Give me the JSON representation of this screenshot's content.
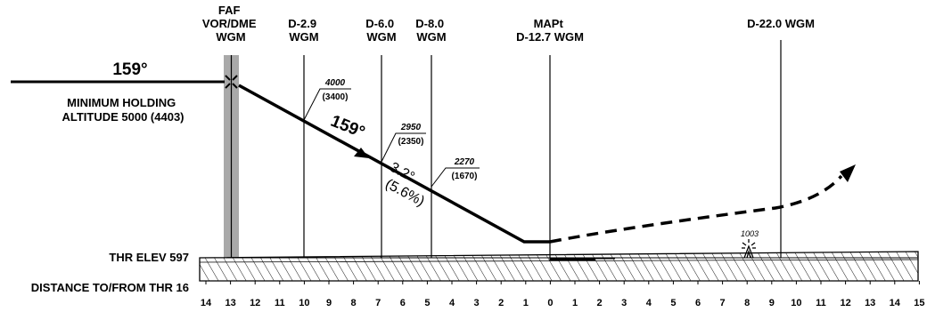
{
  "fixes": {
    "faf": {
      "line1": "FAF",
      "line2": "VOR/DME",
      "line3": "WGM"
    },
    "d29": {
      "line1": "D-2.9",
      "line2": "WGM"
    },
    "d60": {
      "line1": "D-6.0",
      "line2": "WGM"
    },
    "d80": {
      "line1": "D-8.0",
      "line2": "WGM"
    },
    "mapt": {
      "line1": "MAPt",
      "line2": "D-12.7 WGM"
    },
    "d220": {
      "line1": "D-22.0 WGM"
    }
  },
  "inbound_course": "159°",
  "final_course": "159°",
  "holding": {
    "line1": "MINIMUM HOLDING",
    "line2": "ALTITUDE 5000 (4403)"
  },
  "altitudes": {
    "d29": {
      "msl": "4000",
      "agl": "(3400)"
    },
    "d60": {
      "msl": "2950",
      "agl": "(2350)"
    },
    "d80": {
      "msl": "2270",
      "agl": "(1670)"
    }
  },
  "glide_angle": "3.2°",
  "glide_gradient": "(5.6%)",
  "obstacle": "1003",
  "thr_elev": "THR ELEV 597",
  "distance_label": "DISTANCE TO/FROM THR 16",
  "distance_scale": [
    "14",
    "13",
    "12",
    "11",
    "10",
    "9",
    "8",
    "7",
    "6",
    "5",
    "4",
    "3",
    "2",
    "1",
    "0",
    "1",
    "2",
    "3",
    "4",
    "5",
    "6",
    "7",
    "8",
    "9",
    "10",
    "11",
    "12",
    "13",
    "14",
    "15"
  ],
  "colors": {
    "ink": "#000000",
    "faf_band": "#a9a9a9",
    "background": "#ffffff"
  }
}
